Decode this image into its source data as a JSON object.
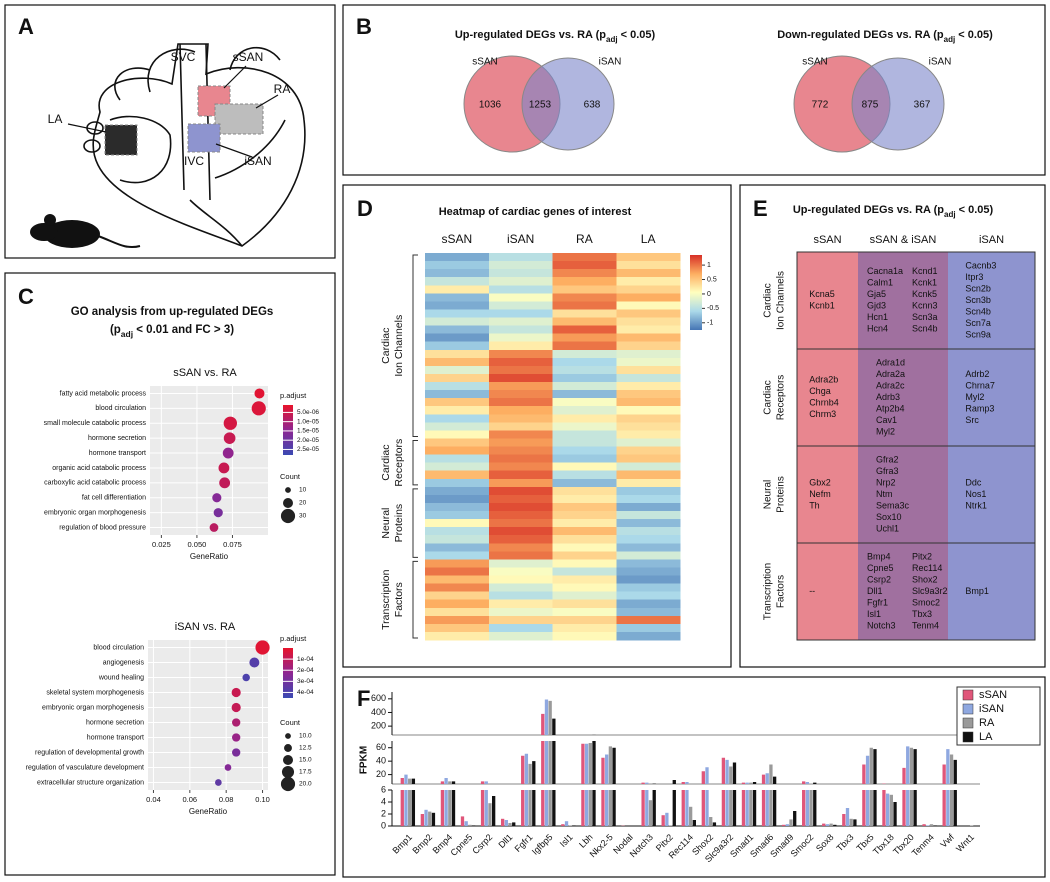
{
  "panel_labels": [
    "A",
    "B",
    "C",
    "D",
    "E",
    "F"
  ],
  "panel_a": {
    "labels": {
      "svc": "SVC",
      "ssan": "sSAN",
      "ra": "RA",
      "la": "LA",
      "ivc": "IVC",
      "isan": "iSAN"
    }
  },
  "panel_b": {
    "venns": [
      {
        "title": {
          "text": "Up-regulated DEGs vs. RA (p",
          "sub": "adj",
          "after": " < 0.05)"
        },
        "left": "sSAN",
        "right": "iSAN",
        "left_only": 1036,
        "both": 1253,
        "right_only": 638
      },
      {
        "title": {
          "text": "Down-regulated DEGs vs. RA (p",
          "sub": "adj",
          "after": " < 0.05)"
        },
        "left": "sSAN",
        "right": "iSAN",
        "left_only": 772,
        "both": 875,
        "right_only": 367
      }
    ],
    "colors": [
      "#e8868f",
      "#7b86c9"
    ]
  },
  "panel_c": {
    "title": "GO analysis from up-regulated DEGs",
    "subtitle": {
      "text": "(p",
      "sub": "adj",
      "after": " < 0.01 and FC > 3)"
    }
  },
  "panel_e": {
    "title": {
      "text": "Up-regulated DEGs vs. RA (p",
      "sub": "adj",
      "after": " < 0.05)"
    },
    "columns": [
      "sSAN",
      "sSAN & iSAN",
      "iSAN"
    ],
    "colors": [
      "#e8868f",
      "#a0709f",
      "#8e94cf"
    ],
    "rows": [
      {
        "label": [
          "Cardiac",
          "Ion Channels"
        ],
        "cells": [
          [
            [
              "Kcna5",
              "Kcnb1"
            ]
          ],
          [
            [
              "Cacna1a",
              "Calm1",
              "Gja5",
              "Gjd3",
              "Hcn1",
              "Hcn4"
            ],
            [
              "Kcnd1",
              "Kcnk1",
              "Kcnk5",
              "Kcnn3",
              "Scn3a",
              "Scn4b"
            ]
          ],
          [
            [
              "Cacnb3",
              "Itpr3",
              "Scn2b",
              "Scn3b",
              "Scn4b",
              "Scn7a",
              "Scn9a"
            ]
          ]
        ]
      },
      {
        "label": [
          "Cardiac",
          "Receptors"
        ],
        "cells": [
          [
            [
              "Adra2b",
              "Chga",
              "Chrnb4",
              "Chrm3"
            ]
          ],
          [
            [
              "Adra1d",
              "Adra2a",
              "Adra2c",
              "Adrb3",
              "Atp2b4",
              "Cav1",
              "Myl2"
            ]
          ],
          [
            [
              "Adrb2",
              "Chrna7",
              "Myl2",
              "Ramp3",
              "Src"
            ]
          ]
        ]
      },
      {
        "label": [
          "Neural",
          "Proteins"
        ],
        "cells": [
          [
            [
              "Gbx2",
              "Nefm",
              "Th"
            ]
          ],
          [
            [
              "Gfra2",
              "Gfra3",
              "Nrp2",
              "Ntm",
              "Sema3c",
              "Sox10",
              "Uchl1"
            ]
          ],
          [
            [
              "Ddc",
              "Nos1",
              "Ntrk1"
            ]
          ]
        ]
      },
      {
        "label": [
          "Transcription",
          "Factors"
        ],
        "cells": [
          [
            [
              "--"
            ]
          ],
          [
            [
              "Bmp4",
              "Cpne5",
              "Csrp2",
              "Dll1",
              "Fgfr1",
              "Isl1",
              "Notch3"
            ],
            [
              "Pitx2",
              "Rec114",
              "Shox2",
              "Slc9a3r2",
              "Smoc2",
              "Tbx3",
              "Tenm4"
            ]
          ],
          [
            [
              "Bmp1"
            ]
          ]
        ]
      }
    ]
  },
  "chart_data": [
    {
      "type": "dotplot",
      "title": "sSAN vs. RA",
      "categories": [
        "fatty acid metabolic process",
        "blood circulation",
        "small molecule catabolic process",
        "hormone secretion",
        "hormone transport",
        "organic acid catabolic process",
        "carboxylic acid catabolic process",
        "fat cell differentiation",
        "embryonic organ morphogenesis",
        "regulation of blood pressure"
      ],
      "x": [
        0.094,
        0.0935,
        0.0735,
        0.073,
        0.072,
        0.069,
        0.0695,
        0.064,
        0.065,
        0.062
      ],
      "count": [
        20,
        30,
        28,
        24,
        22,
        22,
        22,
        18,
        18,
        17
      ],
      "p_adjust": [
        2e-06,
        3e-06,
        4e-06,
        6e-06,
        1.4e-05,
        6e-06,
        7e-06,
        1.6e-05,
        1.8e-05,
        8e-06
      ],
      "xlabel": "GeneRatio",
      "xlim": [
        0.017,
        0.1
      ],
      "xticks": [
        0.025,
        {
          "value": 0.05,
          "label": "0.050"
        },
        0.075
      ],
      "color_legend_title": "p.adjust",
      "color_lim": [
        1e-06,
        2.8e-05
      ],
      "color_ticks": [
        {
          "value": 5e-06,
          "label": "5.0e-06"
        },
        {
          "value": 1e-05,
          "label": "1.0e-05"
        },
        {
          "value": 1.5e-05,
          "label": "1.5e-05"
        },
        {
          "value": 2e-05,
          "label": "2.0e-05"
        },
        {
          "value": 2.5e-05,
          "label": "2.5e-05"
        }
      ],
      "colorscale": [
        "#e8132b",
        "#8e2592",
        "#3a4ab3"
      ],
      "size_legend_title": "Count",
      "size_lim": [
        8,
        32
      ],
      "size_ticks": [
        10,
        20,
        30
      ],
      "grid": true
    },
    {
      "type": "dotplot",
      "title": "iSAN vs. RA",
      "categories": [
        "blood circulation",
        "angiogenesis",
        "wound healing",
        "skeletal system morphogenesis",
        "embryonic organ morphogenesis",
        "hormone secretion",
        "hormone transport",
        "regulation of developmental growth",
        "regulation of vasculature development",
        "extracellular structure organization"
      ],
      "x": [
        0.1,
        0.0955,
        0.091,
        0.0855,
        0.0855,
        0.0855,
        0.0855,
        0.0855,
        0.081,
        0.0757
      ],
      "count": [
        20,
        15,
        12,
        14,
        14,
        13,
        13,
        13,
        11,
        11
      ],
      "p_adjust": [
        2e-05,
        0.00038,
        0.0004,
        8e-05,
        9e-05,
        0.00015,
        0.0002,
        0.00028,
        0.00025,
        0.00035
      ],
      "xlabel": "GeneRatio",
      "xlim": [
        0.037,
        0.103
      ],
      "xticks": [
        0.04,
        0.06,
        0.08,
        {
          "value": 0.1,
          "label": "0.10"
        }
      ],
      "color_legend_title": "p.adjust",
      "color_lim": [
        0,
        0.00045
      ],
      "color_ticks": [
        {
          "value": 0.0001,
          "label": "1e-04"
        },
        {
          "value": 0.0002,
          "label": "2e-04"
        },
        {
          "value": 0.0003,
          "label": "3e-04"
        },
        {
          "value": 0.0004,
          "label": "4e-04"
        }
      ],
      "colorscale": [
        "#e8132b",
        "#8e2592",
        "#3a4ab3"
      ],
      "size_legend_title": "Count",
      "size_lim": [
        9,
        21
      ],
      "size_ticks": [
        {
          "value": 10,
          "label": "10.0"
        },
        12.5,
        {
          "value": 15,
          "label": "15.0"
        },
        17.5,
        {
          "value": 20,
          "label": "20.0"
        }
      ],
      "grid": true
    },
    {
      "type": "heatmap",
      "title": "Heatmap of cardiac genes of interest",
      "columns": [
        "sSAN",
        "iSAN",
        "RA",
        "LA"
      ],
      "groups": [
        {
          "label": [
            "Cardiac",
            "Ion Channels"
          ],
          "values": [
            [
              -0.9,
              -0.7,
              -0.8,
              -0.4,
              0.2,
              -0.8,
              -0.9,
              -0.6,
              -0.3,
              -0.8,
              -1,
              -0.7,
              0.3,
              0.6,
              -0.2,
              0.4,
              -0.5,
              -0.8,
              0.5,
              0.2,
              -0.6,
              -0.3,
              0.1
            ],
            [
              -0.5,
              -0.3,
              -0.4,
              -0.2,
              -0.5,
              0,
              -0.3,
              -0.6,
              -0.2,
              -0.4,
              -0.1,
              0.2,
              0.9,
              1.1,
              1,
              1.2,
              0.8,
              0.9,
              1,
              0.7,
              0.6,
              0.4,
              0.9
            ],
            [
              1,
              1.1,
              0.9,
              0.7,
              0.5,
              0.9,
              1,
              0.3,
              0.6,
              1.1,
              0.8,
              1,
              -0.3,
              -0.6,
              -0.5,
              -0.7,
              -0.3,
              -0.8,
              0,
              -0.2,
              0.2,
              -0.1,
              -0.4
            ],
            [
              0.5,
              0.3,
              0.6,
              0.2,
              0.4,
              0.7,
              0.1,
              0.5,
              0.3,
              0.2,
              0.6,
              0.4,
              -0.2,
              -0.1,
              0.3,
              -0.4,
              0.2,
              0.5,
              0.6,
              0.1,
              0.4,
              0.3,
              0.2
            ]
          ]
        },
        {
          "label": [
            "Cardiac",
            "Receptors"
          ],
          "values": [
            [
              0.5,
              0.7,
              -0.5,
              -0.3,
              0.6,
              -0.7
            ],
            [
              0.8,
              0.9,
              1,
              0.9,
              1.1,
              0.8
            ],
            [
              -0.4,
              -0.6,
              -0.7,
              0.1,
              -0.5,
              -0.8
            ],
            [
              -0.2,
              0.4,
              0.5,
              -0.3,
              0.6,
              0.2
            ]
          ]
        },
        {
          "label": [
            "Neural",
            "Proteins"
          ],
          "values": [
            [
              -0.9,
              -1,
              -0.8,
              -0.7,
              0.1,
              -0.5,
              -0.4,
              -0.8,
              -0.6
            ],
            [
              1.2,
              1.1,
              1.2,
              1.1,
              1,
              1.2,
              1.1,
              0.9,
              1
            ],
            [
              0.3,
              0.2,
              0.5,
              0.4,
              0.2,
              0.6,
              0.3,
              0.1,
              0.4
            ],
            [
              -0.7,
              -0.6,
              -0.9,
              -0.4,
              -0.8,
              -0.5,
              -0.6,
              -0.8,
              -0.3
            ]
          ]
        },
        {
          "label": [
            "Transcription",
            "Factors"
          ],
          "values": [
            [
              0.8,
              1,
              0.6,
              0.9,
              0.4,
              0.7,
              0.3,
              0.8,
              0.5,
              0.2
            ],
            [
              -0.2,
              0,
              0.1,
              -0.3,
              -0.5,
              0.2,
              -0.1,
              0.4,
              -0.6,
              -0.2
            ],
            [
              0.1,
              -0.4,
              0.2,
              0.1,
              -0.2,
              0.3,
              0,
              0.4,
              0.2,
              0.1
            ],
            [
              -0.8,
              -0.9,
              -1,
              -0.7,
              -0.6,
              -0.9,
              -0.8,
              1,
              -0.7,
              -0.9
            ]
          ]
        }
      ],
      "clim": [
        -1.25,
        1.35
      ],
      "cticks": [
        1,
        0.5,
        0,
        -0.5,
        -1
      ],
      "colorscale": [
        "#4575b4",
        "#abd9e9",
        "#ffffbf",
        "#fdae61",
        "#d73027"
      ]
    },
    {
      "type": "bar",
      "ylabel": "FPKM",
      "categories": [
        "Bmp1",
        "Bmp2",
        "Bmp4",
        "Cpne5",
        "Csrp2",
        "Dll1",
        "Fgfr1",
        "Igfbp5",
        "Isl1",
        "Lbh",
        "Nkx2-5",
        "Nodal",
        "Notch3",
        "Pitx2",
        "Rec114",
        "Shox2",
        "Slc9a3r2",
        "Smad1",
        "Smad6",
        "Smad9",
        "Smoc2",
        "Sox8",
        "Tbx3",
        "Tbx5",
        "Tbx18",
        "Tbx20",
        "Tenm4",
        "Vwf",
        "Wnt1"
      ],
      "series": [
        {
          "name": "sSAN",
          "color": "#e0567a",
          "values": [
            15,
            2,
            10,
            1.6,
            10,
            1.2,
            48,
            380,
            0.3,
            66,
            45,
            0.05,
            8,
            1.8,
            9,
            25,
            45,
            8,
            20,
            0.2,
            10,
            0.4,
            2,
            35,
            6.5,
            30,
            0.3,
            35,
            0
          ]
        },
        {
          "name": "iSAN",
          "color": "#8fa8e0",
          "values": [
            20,
            2.7,
            15,
            0.8,
            10,
            1,
            51,
            590,
            0.8,
            66,
            50,
            0,
            8,
            2.2,
            9,
            31,
            42,
            8,
            22,
            0.3,
            9,
            0.3,
            3,
            48,
            5.4,
            62,
            0.1,
            58,
            0
          ]
        },
        {
          "name": "RA",
          "color": "#9a9a9a",
          "values": [
            14,
            2.4,
            10,
            0.2,
            3.8,
            0.5,
            36,
            570,
            0.1,
            67,
            62,
            0,
            4.3,
            0.1,
            3.2,
            1.5,
            32,
            8,
            35,
            1.1,
            6.5,
            0.4,
            1.2,
            60,
            5.2,
            60,
            0.3,
            50,
            0.1
          ]
        },
        {
          "name": "LA",
          "color": "#111111",
          "values": [
            14,
            2.2,
            10,
            0.1,
            5,
            0.6,
            40,
            310,
            0.1,
            72,
            60,
            0,
            6.5,
            12,
            1,
            0.6,
            38,
            9,
            17,
            2.5,
            8,
            0.2,
            1.1,
            58,
            4,
            58,
            0.1,
            42,
            0
          ]
        }
      ],
      "segments": [
        {
          "ylim": [
            0,
            6
          ],
          "yticks": [
            0,
            2,
            4,
            6
          ]
        },
        {
          "ylim": [
            6,
            70
          ],
          "yticks": [
            20,
            40,
            60
          ]
        },
        {
          "ylim": [
            70,
            700
          ],
          "yticks": [
            200,
            400,
            600
          ]
        }
      ],
      "legend": "top-right"
    }
  ]
}
